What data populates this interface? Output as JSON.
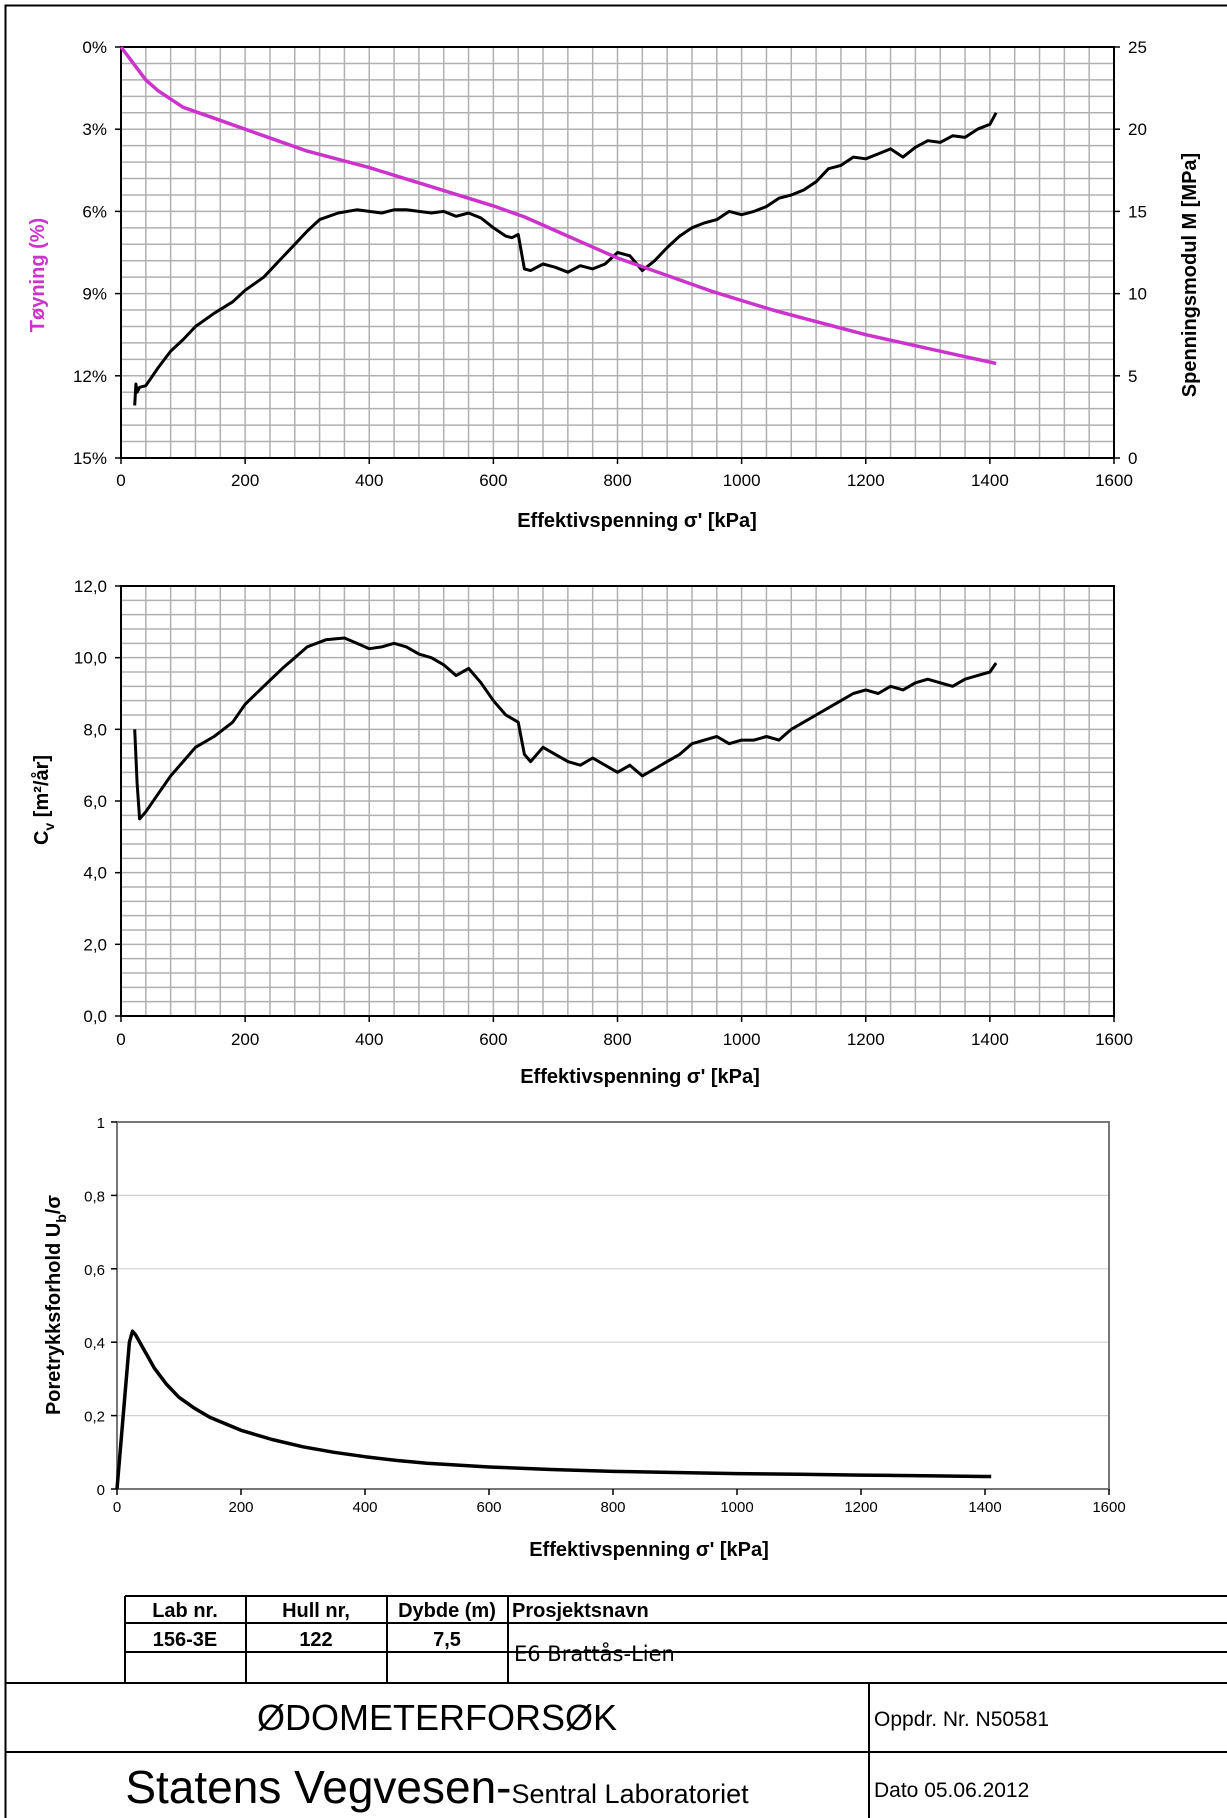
{
  "chart_data": [
    {
      "type": "line",
      "xlabel": "Effektivspenning σ' [kPa]",
      "ylabel_left": "Tøyning (%)",
      "ylabel_right": "Spenningsmodul  M [MPa]",
      "xlim": [
        0,
        1600
      ],
      "ylim_left": [
        0,
        15
      ],
      "ylim_right": [
        0,
        25
      ],
      "left_inverted": true,
      "x_ticks": [
        "0",
        "200",
        "400",
        "600",
        "800",
        "1000",
        "1200",
        "1400",
        "1600"
      ],
      "y_ticks_left": [
        "0%",
        "3%",
        "6%",
        "9%",
        "12%",
        "15%"
      ],
      "y_ticks_right": [
        "0",
        "5",
        "10",
        "15",
        "20",
        "25"
      ],
      "grid": true,
      "series": [
        {
          "color": "#cc33cc",
          "axis": "left",
          "x": [
            0,
            20,
            40,
            60,
            80,
            100,
            150,
            200,
            250,
            300,
            350,
            400,
            450,
            500,
            550,
            600,
            650,
            700,
            750,
            800,
            850,
            900,
            950,
            1000,
            1050,
            1100,
            1150,
            1200,
            1250,
            1300,
            1350,
            1400,
            1410
          ],
          "y": [
            0,
            0.6,
            1.2,
            1.6,
            1.9,
            2.2,
            2.6,
            3.0,
            3.4,
            3.8,
            4.1,
            4.4,
            4.75,
            5.1,
            5.45,
            5.8,
            6.2,
            6.7,
            7.2,
            7.7,
            8.1,
            8.5,
            8.9,
            9.25,
            9.6,
            9.9,
            10.2,
            10.5,
            10.75,
            11.0,
            11.25,
            11.5,
            11.55
          ]
        },
        {
          "color": "#000000",
          "axis": "right",
          "x": [
            22,
            24,
            26,
            30,
            40,
            60,
            80,
            100,
            120,
            150,
            180,
            200,
            230,
            260,
            280,
            300,
            320,
            350,
            380,
            400,
            420,
            440,
            460,
            480,
            500,
            520,
            540,
            560,
            580,
            600,
            620,
            630,
            640,
            650,
            660,
            680,
            700,
            720,
            740,
            760,
            780,
            800,
            820,
            840,
            860,
            880,
            900,
            920,
            940,
            960,
            980,
            1000,
            1020,
            1040,
            1060,
            1080,
            1100,
            1120,
            1140,
            1160,
            1180,
            1200,
            1220,
            1240,
            1260,
            1280,
            1300,
            1320,
            1340,
            1360,
            1380,
            1400,
            1410
          ],
          "y": [
            3.2,
            4.5,
            4.0,
            4.3,
            4.4,
            5.5,
            6.5,
            7.2,
            8.0,
            8.8,
            9.5,
            10.2,
            11.0,
            12.2,
            13.0,
            13.8,
            14.5,
            14.9,
            15.1,
            15.0,
            14.9,
            15.1,
            15.1,
            15.0,
            14.9,
            15.0,
            14.7,
            14.9,
            14.6,
            14.0,
            13.5,
            13.4,
            13.6,
            11.5,
            11.4,
            11.8,
            11.6,
            11.3,
            11.7,
            11.5,
            11.8,
            12.5,
            12.3,
            11.4,
            12.0,
            12.8,
            13.5,
            14.0,
            14.3,
            14.5,
            15.0,
            14.8,
            15.0,
            15.3,
            15.8,
            16.0,
            16.3,
            16.8,
            17.6,
            17.8,
            18.3,
            18.2,
            18.5,
            18.8,
            18.3,
            18.9,
            19.3,
            19.2,
            19.6,
            19.5,
            20.0,
            20.3,
            21.0
          ]
        }
      ]
    },
    {
      "type": "line",
      "xlabel": "Effektivspenning σ' [kPa]",
      "ylabel": "Cv [m²/år]",
      "ylabel_main": "C",
      "ylabel_sub": "v",
      "ylabel_rest": " [m²/år]",
      "xlim": [
        0,
        1600
      ],
      "ylim": [
        0,
        12
      ],
      "x_ticks": [
        "0",
        "200",
        "400",
        "600",
        "800",
        "1000",
        "1200",
        "1400",
        "1600"
      ],
      "y_ticks": [
        "0,0",
        "2,0",
        "4,0",
        "6,0",
        "8,0",
        "10,0",
        "12,0"
      ],
      "grid": true,
      "series": [
        {
          "color": "#000000",
          "x": [
            22,
            26,
            30,
            40,
            60,
            80,
            100,
            120,
            150,
            180,
            200,
            230,
            260,
            280,
            300,
            330,
            360,
            380,
            400,
            420,
            440,
            460,
            480,
            500,
            520,
            540,
            560,
            580,
            600,
            620,
            630,
            640,
            650,
            660,
            680,
            700,
            720,
            740,
            760,
            780,
            800,
            820,
            840,
            860,
            880,
            900,
            920,
            940,
            960,
            980,
            1000,
            1020,
            1040,
            1060,
            1080,
            1100,
            1120,
            1140,
            1160,
            1180,
            1200,
            1220,
            1240,
            1260,
            1280,
            1300,
            1320,
            1340,
            1360,
            1380,
            1400,
            1410
          ],
          "y": [
            8.0,
            6.5,
            5.5,
            5.7,
            6.2,
            6.7,
            7.1,
            7.5,
            7.8,
            8.2,
            8.7,
            9.2,
            9.7,
            10.0,
            10.3,
            10.5,
            10.55,
            10.4,
            10.25,
            10.3,
            10.4,
            10.3,
            10.1,
            10.0,
            9.8,
            9.5,
            9.7,
            9.3,
            8.8,
            8.4,
            8.3,
            8.2,
            7.3,
            7.1,
            7.5,
            7.3,
            7.1,
            7.0,
            7.2,
            7.0,
            6.8,
            7.0,
            6.7,
            6.9,
            7.1,
            7.3,
            7.6,
            7.7,
            7.8,
            7.6,
            7.7,
            7.7,
            7.8,
            7.7,
            8.0,
            8.2,
            8.4,
            8.6,
            8.8,
            9.0,
            9.1,
            9.0,
            9.2,
            9.1,
            9.3,
            9.4,
            9.3,
            9.2,
            9.4,
            9.5,
            9.6,
            9.85
          ]
        }
      ]
    },
    {
      "type": "line",
      "xlabel": "Effektivspenning σ' [kPa]",
      "ylabel": "Poretrykksforhold Ub/σ",
      "ylabel_main": "Poretrykksforhold U",
      "ylabel_sub": "b",
      "ylabel_rest": "/σ",
      "xlim": [
        0,
        1600
      ],
      "ylim": [
        0,
        1
      ],
      "x_ticks": [
        "0",
        "200",
        "400",
        "600",
        "800",
        "1000",
        "1200",
        "1400",
        "1600"
      ],
      "y_ticks": [
        "0",
        "0,2",
        "0,4",
        "0,6",
        "0,8",
        "1"
      ],
      "grid": true,
      "series": [
        {
          "color": "#000000",
          "x": [
            0,
            10,
            20,
            25,
            30,
            40,
            50,
            60,
            80,
            100,
            125,
            150,
            200,
            250,
            300,
            350,
            400,
            450,
            500,
            600,
            700,
            800,
            900,
            1000,
            1100,
            1200,
            1300,
            1400,
            1410
          ],
          "y": [
            0,
            0.2,
            0.4,
            0.43,
            0.42,
            0.39,
            0.36,
            0.33,
            0.285,
            0.25,
            0.22,
            0.195,
            0.16,
            0.135,
            0.115,
            0.1,
            0.088,
            0.078,
            0.07,
            0.06,
            0.053,
            0.048,
            0.045,
            0.042,
            0.04,
            0.038,
            0.036,
            0.034,
            0.034
          ]
        }
      ]
    }
  ],
  "info_table": {
    "headers": [
      "Lab nr.",
      "Hull nr,",
      "Dybde (m)",
      "Prosjektsnavn"
    ],
    "lab_nr": "156-3E",
    "hull_nr": "122",
    "dybde": "7,5",
    "prosjektsnavn": "E6 Brattås-Lien"
  },
  "title_block": {
    "title": "ØDOMETERFORSØK",
    "oppdr": "Oppdr. Nr. N50581",
    "org_main": "Statens Vegvesen-",
    "org_sub": "Sentral Laboratoriet",
    "dato": "Dato 05.06.2012"
  }
}
